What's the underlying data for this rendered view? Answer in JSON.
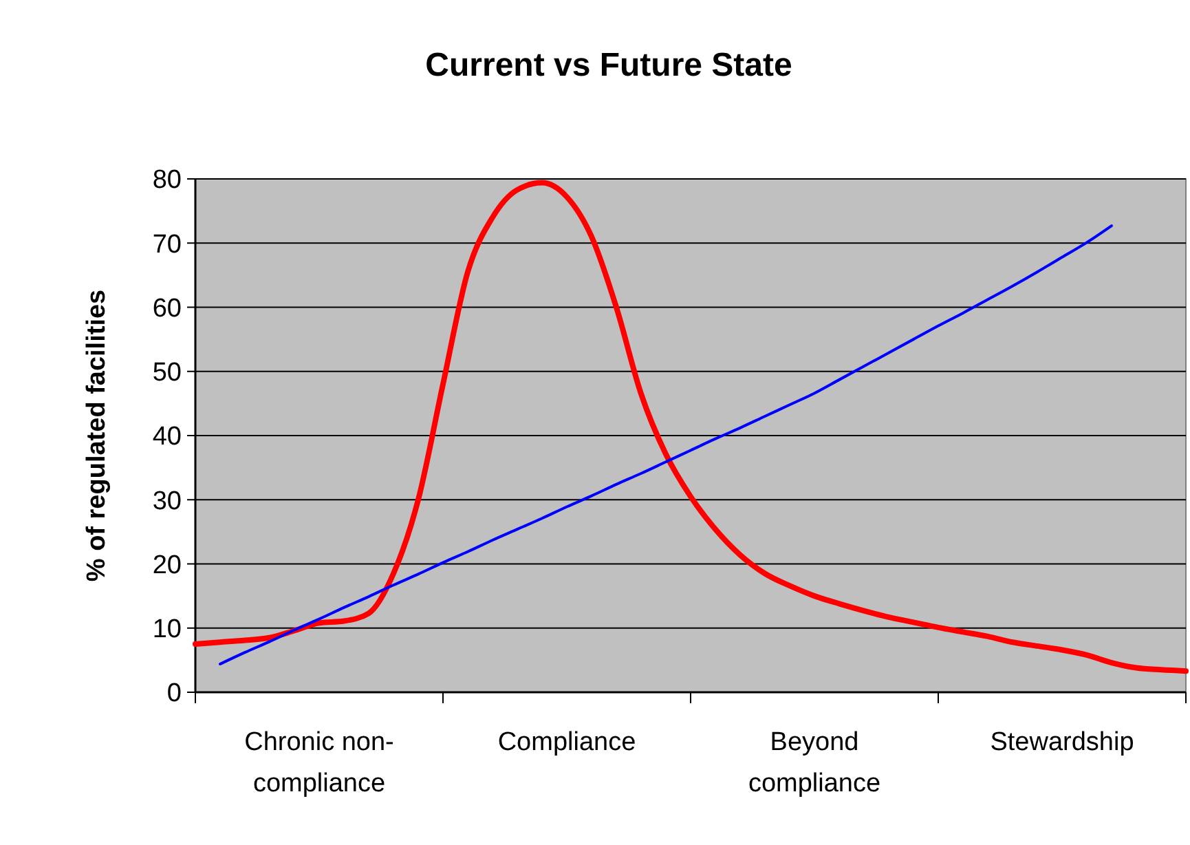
{
  "chart_data": {
    "type": "line",
    "title": "Current vs Future State",
    "ylabel": "% of regulated facilities",
    "categories": [
      null,
      null,
      null,
      null,
      null,
      "Chronic non-compliance",
      null,
      null,
      null,
      null,
      null,
      null,
      null,
      null,
      null,
      "Compliance",
      null,
      null,
      null,
      null,
      null,
      null,
      null,
      null,
      null,
      "Beyond compliance",
      null,
      null,
      null,
      null,
      null,
      null,
      null,
      null,
      null,
      "Stewardship",
      null,
      null,
      null,
      null,
      null
    ],
    "ylim": [
      0,
      80
    ],
    "yticks": [
      0,
      10,
      20,
      30,
      40,
      50,
      60,
      70,
      80
    ],
    "grid": "y",
    "marker": "none",
    "line_style": "solid",
    "series": [
      {
        "color": "#ff0000",
        "values": [
          7.5,
          7.8,
          8.1,
          8.5,
          9.6,
          10.8,
          11.1,
          12.3,
          18.5,
          30,
          48,
          65.5,
          74,
          78.3,
          79.4,
          77.2,
          71,
          60,
          46.5,
          37.1,
          30.5,
          25.4,
          21.4,
          18.5,
          16.6,
          15,
          13.8,
          12.7,
          11.7,
          10.9,
          10.1,
          9.4,
          8.7,
          7.8,
          7.2,
          6.6,
          5.8,
          4.6,
          3.8,
          3.5,
          3.3
        ]
      },
      {
        "color": "#0000ff",
        "values": [
          null,
          4.4,
          6.2,
          7.9,
          9.7,
          11.4,
          13.2,
          14.9,
          16.7,
          18.4,
          20.2,
          21.9,
          23.7,
          25.4,
          27.1,
          28.9,
          30.6,
          32.4,
          34.1,
          35.9,
          37.7,
          39.5,
          41.2,
          43,
          44.8,
          46.6,
          48.7,
          50.8,
          52.9,
          55,
          57.1,
          59.1,
          61.2,
          63.3,
          65.5,
          67.8,
          70.1,
          72.7,
          null,
          null,
          null
        ]
      }
    ]
  }
}
